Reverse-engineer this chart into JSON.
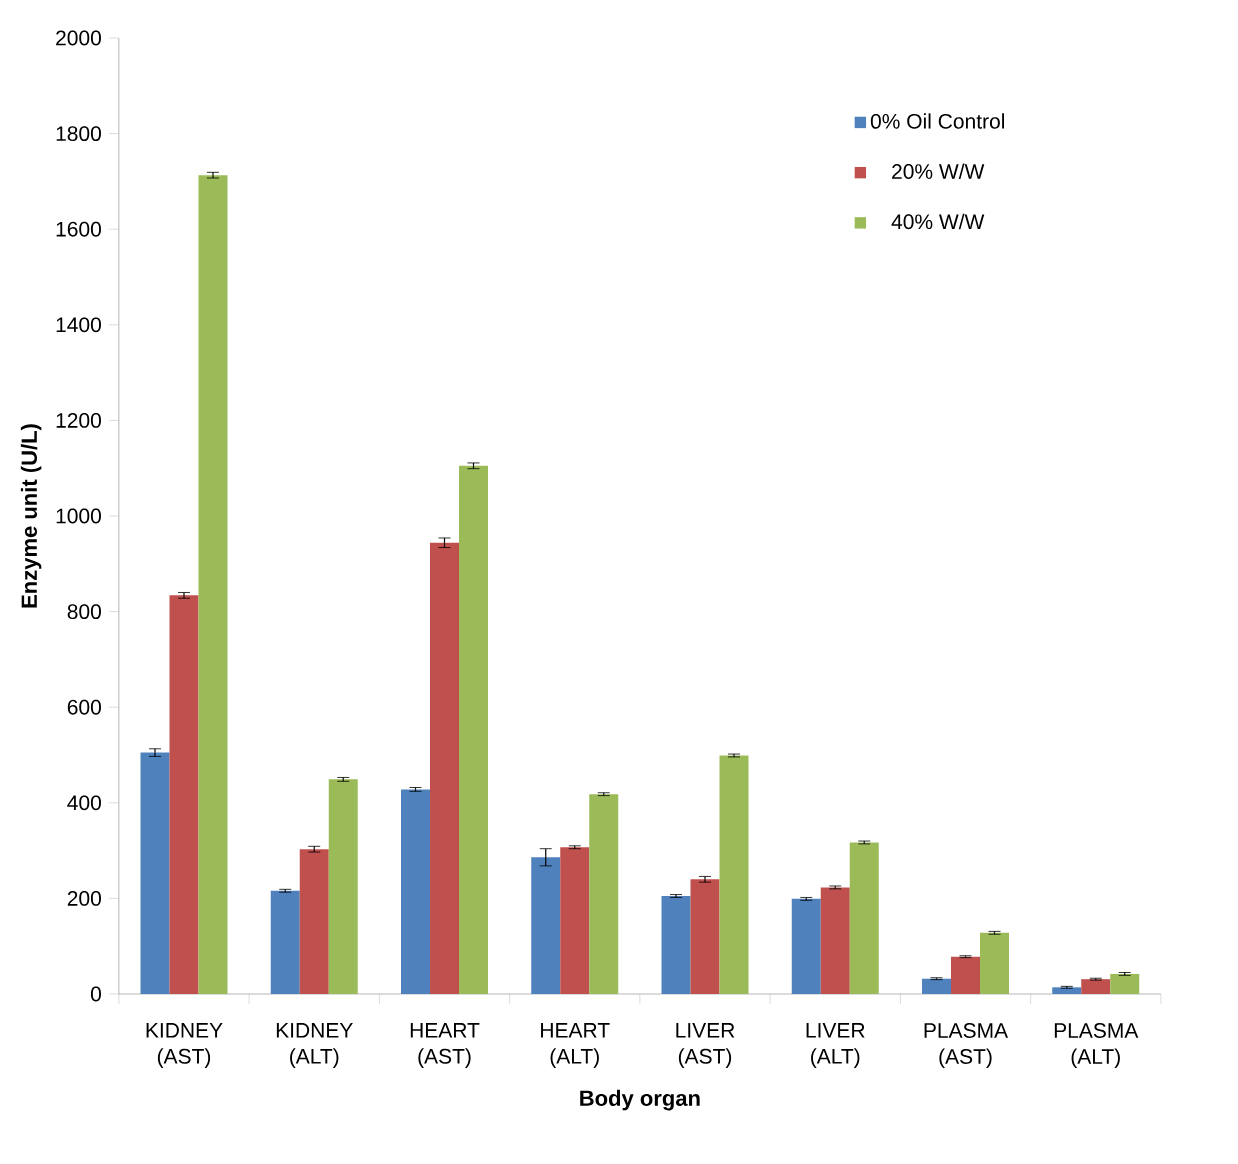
{
  "chart_data": {
    "type": "bar",
    "xlabel": "Body organ",
    "ylabel": "Enzyme unit (U/L)",
    "categories": [
      "KIDNEY (AST)",
      "KIDNEY (ALT)",
      "HEART (AST)",
      "HEART (ALT)",
      "LIVER (AST)",
      "LIVER (ALT)",
      "PLASMA (AST)",
      "PLASMA (ALT)"
    ],
    "series": [
      {
        "name": "0% Oil Control",
        "color": "#4f81bd",
        "values": [
          505,
          216,
          428,
          286,
          205,
          199,
          32,
          14
        ],
        "errors": [
          8,
          3,
          4,
          18,
          3,
          3,
          2,
          2
        ]
      },
      {
        "name": "20% W/W",
        "color": "#c0504d",
        "values": [
          834,
          303,
          944,
          307,
          240,
          223,
          78,
          31
        ],
        "errors": [
          6,
          6,
          10,
          3,
          6,
          3,
          2,
          2
        ]
      },
      {
        "name": "40% W/W",
        "color": "#9bbb59",
        "values": [
          1713,
          449,
          1105,
          418,
          499,
          317,
          128,
          42
        ],
        "errors": [
          6,
          4,
          6,
          3,
          3,
          3,
          3,
          3
        ]
      }
    ],
    "ylim": [
      0,
      2000
    ],
    "yticks": [
      0,
      200,
      400,
      600,
      800,
      1000,
      1200,
      1400,
      1600,
      1800,
      2000
    ],
    "grid": false,
    "legend": "top right"
  }
}
